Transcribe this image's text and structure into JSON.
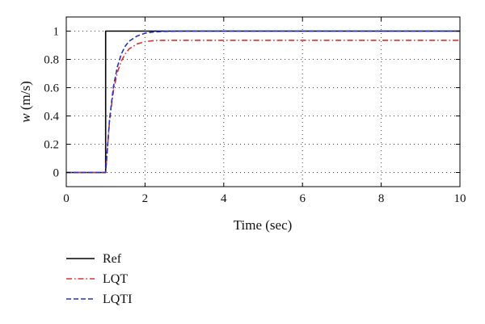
{
  "chart_data": {
    "type": "line",
    "xlabel": "Time (sec)",
    "ylabel_var": "w",
    "ylabel_unit": " (m/s)",
    "xlim": [
      0,
      10
    ],
    "ylim": [
      -0.1,
      1.1
    ],
    "xticks": [
      0,
      2,
      4,
      6,
      8,
      10
    ],
    "yticks": [
      0,
      0.2,
      0.4,
      0.6,
      0.8,
      1
    ],
    "xtick_labels": [
      "0",
      "2",
      "4",
      "6",
      "8",
      "10"
    ],
    "ytick_labels": [
      "0",
      "0.2",
      "0.4",
      "0.6",
      "0.8",
      "1"
    ],
    "grid": true,
    "legend_position": "below plot, left",
    "series": [
      {
        "name": "Ref",
        "color": "#000000",
        "style": "solid",
        "x": [
          0,
          1,
          1,
          10
        ],
        "y": [
          0,
          0,
          1,
          1
        ]
      },
      {
        "name": "LQT",
        "color": "#e0302a",
        "style": "dashdot",
        "x": [
          0,
          1,
          1.1,
          1.2,
          1.3,
          1.4,
          1.5,
          1.6,
          1.8,
          2.0,
          2.2,
          2.5,
          3,
          4,
          6,
          8,
          10
        ],
        "y": [
          0,
          0,
          0.37,
          0.58,
          0.71,
          0.79,
          0.84,
          0.875,
          0.91,
          0.925,
          0.932,
          0.935,
          0.935,
          0.935,
          0.935,
          0.935,
          0.935
        ]
      },
      {
        "name": "LQTI",
        "color": "#2233cc",
        "style": "dashed",
        "x": [
          0,
          1,
          1.1,
          1.2,
          1.3,
          1.4,
          1.5,
          1.6,
          1.8,
          2.0,
          2.2,
          2.5,
          3,
          4,
          6,
          8,
          10
        ],
        "y": [
          0,
          0,
          0.38,
          0.61,
          0.75,
          0.84,
          0.895,
          0.93,
          0.965,
          0.985,
          0.993,
          0.998,
          1,
          1,
          1,
          1,
          1
        ]
      }
    ]
  }
}
